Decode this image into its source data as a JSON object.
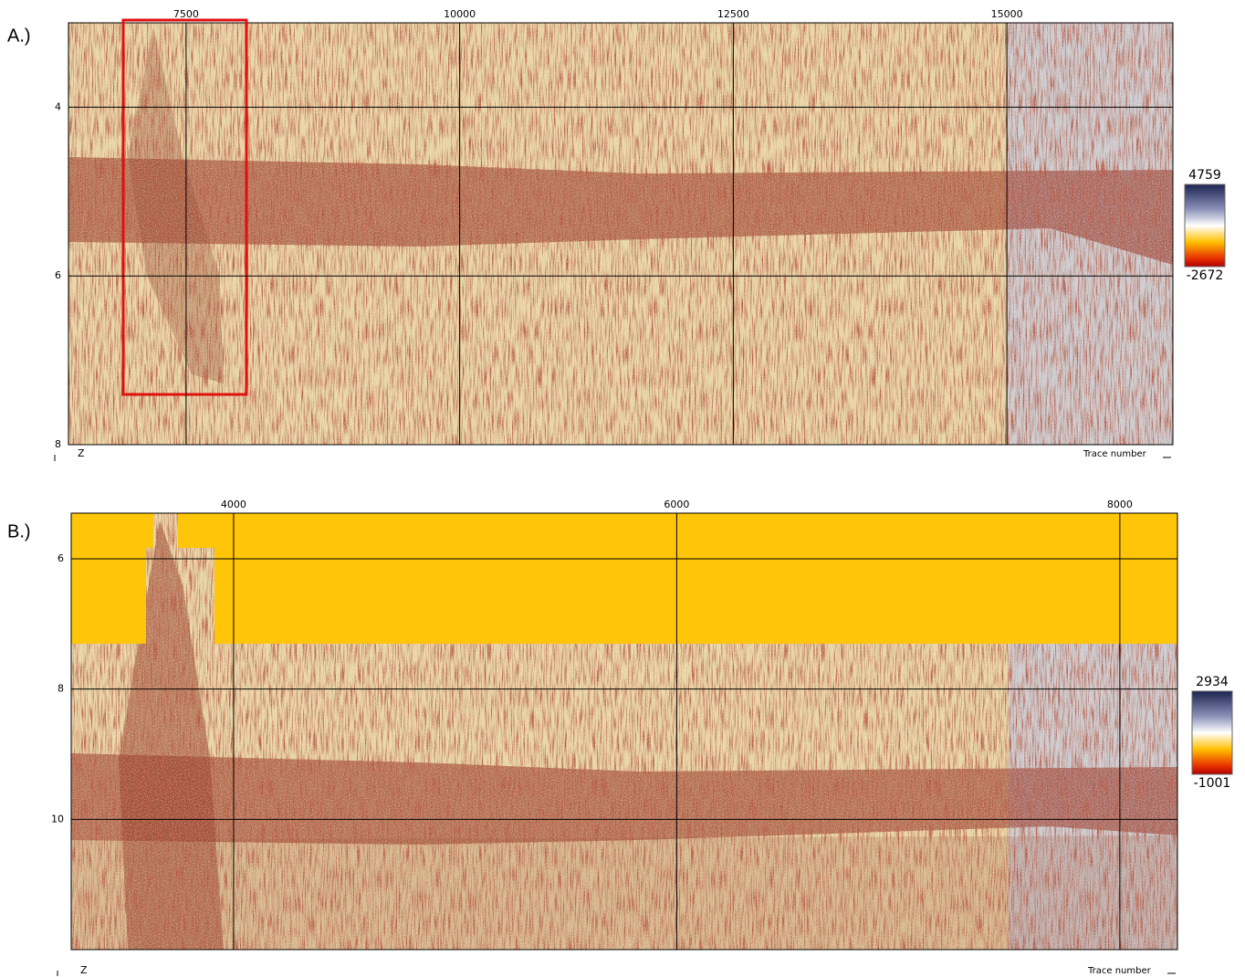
{
  "panels": [
    {
      "label": "A.)",
      "xlim": [
        6425,
        16517
      ],
      "xticks": [
        7500,
        10000,
        12500,
        15000
      ],
      "ylim": [
        3,
        8
      ],
      "yticks": [
        4,
        6,
        8
      ],
      "y_axis_label": "Z",
      "x_axis_label": "Trace number",
      "colorbar": {
        "max": 4759,
        "min": -2672
      }
    },
    {
      "label": "B.)",
      "xlim": [
        3267,
        8260
      ],
      "xticks": [
        4000,
        6000,
        8000
      ],
      "ylim": [
        5.3,
        12
      ],
      "yticks": [
        6,
        8,
        10
      ],
      "y_axis_label": "Z",
      "x_axis_label": "Trace number",
      "colorbar": {
        "max": 2934,
        "min": -1001
      }
    }
  ]
}
